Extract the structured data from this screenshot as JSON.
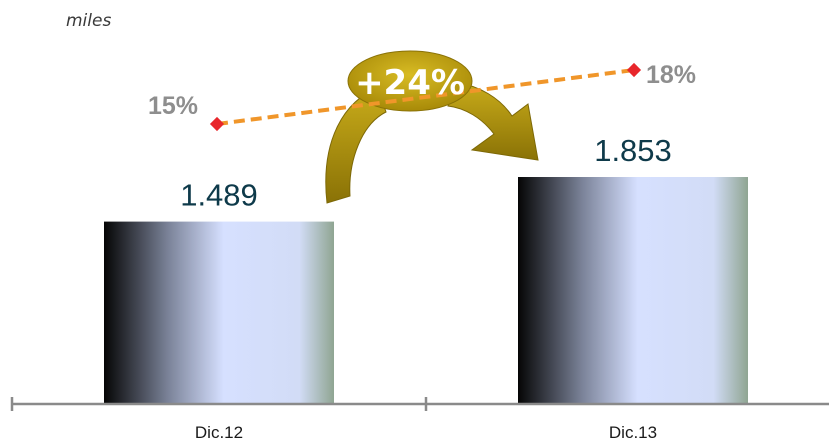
{
  "chart_data": {
    "type": "bar",
    "unit_label": "miles",
    "categories": [
      "Dic.12",
      "Dic.13"
    ],
    "values": [
      1489,
      1853
    ],
    "value_labels": [
      "1.489",
      "1.853"
    ],
    "ylim": [
      0,
      2400
    ],
    "ratio_series": {
      "values": [
        15,
        18
      ],
      "labels": [
        "15%",
        "18%"
      ],
      "style": "dashed",
      "color": "#f0962a",
      "marker_color": "#e8262b"
    },
    "growth": {
      "label": "+24%",
      "color": "#b89a0e"
    },
    "colors": {
      "bar_dark": "#050505",
      "bar_mid": "#7b8399",
      "bar_light": "#d6e0ff",
      "bar_edge": "#8fa592",
      "axis": "#8a8a8a"
    }
  }
}
